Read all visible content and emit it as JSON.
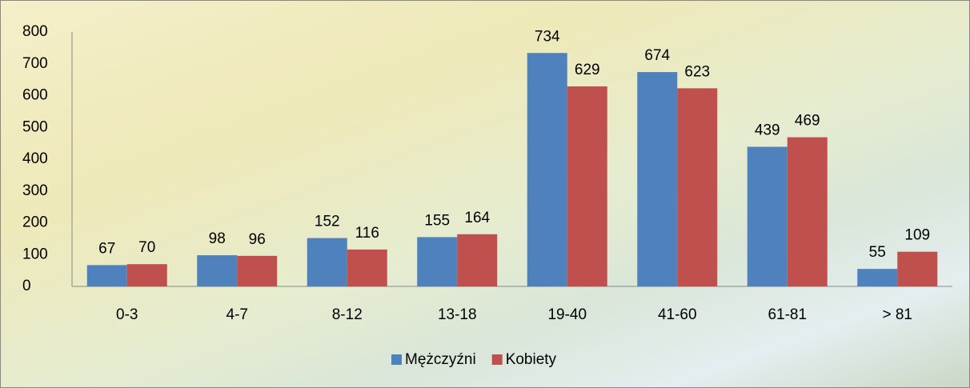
{
  "chart_data": {
    "type": "bar",
    "categories": [
      "0-3",
      "4-7",
      "8-12",
      "13-18",
      "19-40",
      "41-60",
      "61-81",
      "> 81"
    ],
    "series": [
      {
        "name": "Mężczyźni",
        "color": "#4f81bd",
        "values": [
          67,
          98,
          152,
          155,
          734,
          674,
          439,
          55
        ]
      },
      {
        "name": "Kobiety",
        "color": "#c0504d",
        "values": [
          70,
          96,
          116,
          164,
          629,
          623,
          469,
          109
        ]
      }
    ],
    "ylim": [
      0,
      800
    ],
    "yticks": [
      0,
      100,
      200,
      300,
      400,
      500,
      600,
      700,
      800
    ],
    "grid": false,
    "legend": "bottom"
  }
}
